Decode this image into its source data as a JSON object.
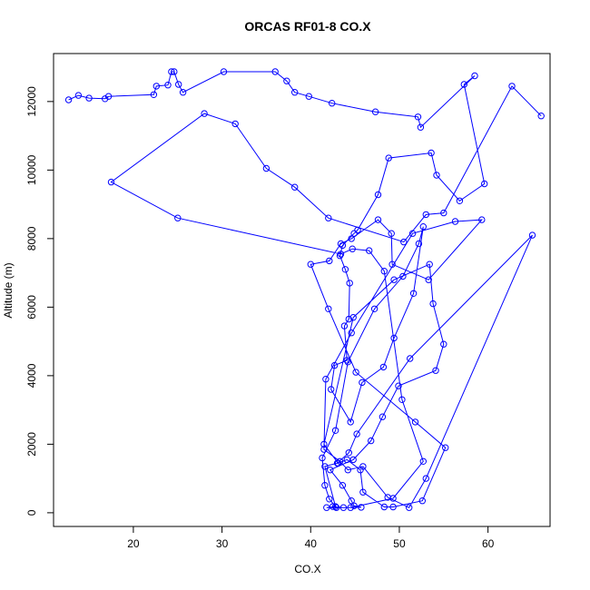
{
  "chart_data": {
    "type": "line",
    "title": "ORCAS RF01-8 CO.X",
    "xlabel": "CO.X",
    "ylabel": "Altitude (m)",
    "xlim": [
      11,
      67
    ],
    "ylim": [
      -400,
      13400
    ],
    "x_ticks": [
      20,
      30,
      40,
      50,
      60
    ],
    "y_ticks": [
      0,
      2000,
      4000,
      6000,
      8000,
      10000,
      12000
    ],
    "grid": false,
    "legend": "none",
    "series": [
      {
        "color": "#0000ff",
        "markers": "open-circle",
        "x": [
          12.7,
          13.8,
          15.0,
          16.8,
          17.2,
          22.3,
          22.6,
          23.9,
          24.3,
          24.6,
          25.1,
          25.6,
          30.2,
          36.0,
          37.3,
          38.2,
          39.8,
          42.4,
          47.3,
          52.1,
          52.4,
          58.5,
          57.3,
          59.6,
          56.8,
          54.2,
          53.6,
          48.8,
          47.6,
          45.3,
          44.9,
          43.6,
          43.3,
          43.9,
          44.4,
          44.3,
          43.8,
          44.1,
          42.7,
          42.3,
          44.5,
          45.8,
          48.2,
          49.4,
          51.6,
          52.7,
          52.2,
          50.4,
          47.2,
          44.2,
          42.8,
          41.3,
          41.6,
          42.1,
          42.9,
          42.5,
          43.7,
          45.7,
          44.9,
          44.6,
          43.6,
          42.2,
          44.8,
          46.8,
          48.1,
          49.9,
          54.1,
          55.0,
          53.8,
          53.4,
          49.4,
          44.8,
          41.5,
          43.1,
          44.1,
          45.6,
          45.9,
          48.3,
          49.3,
          52.6,
          55.2,
          51.8,
          45.1,
          42.0,
          40.0,
          42.1,
          43.4,
          44.6,
          47.6,
          49.1,
          49.2,
          53.3,
          59.3,
          56.3,
          51.5,
          44.6,
          41.7,
          41.5,
          43.3,
          44.2,
          45.9,
          48.7,
          51.1,
          53.0,
          65.0,
          51.2,
          45.2,
          44.3,
          43.0,
          41.6,
          42.8,
          41.8,
          44.5,
          49.3,
          52.7,
          50.3,
          48.3,
          46.6,
          44.7,
          43.4,
          25.0,
          17.5,
          28.0,
          31.5,
          35.0,
          38.2,
          42.0,
          50.5,
          53.0,
          55.0,
          62.7,
          66.0
        ],
        "y": [
          12050,
          12180,
          12100,
          12080,
          12150,
          12200,
          12450,
          12480,
          12870,
          12870,
          12500,
          12270,
          12870,
          12870,
          12600,
          12270,
          12150,
          11950,
          11700,
          11550,
          11250,
          12750,
          12500,
          9600,
          9100,
          9850,
          10500,
          10350,
          9280,
          8250,
          8150,
          7800,
          7500,
          7100,
          6700,
          5650,
          5450,
          4450,
          4300,
          3600,
          2650,
          3800,
          4250,
          5100,
          6400,
          8350,
          7850,
          6900,
          5950,
          4400,
          2400,
          1600,
          800,
          400,
          150,
          180,
          150,
          160,
          200,
          350,
          800,
          1250,
          1550,
          2100,
          2800,
          3700,
          4150,
          4920,
          6100,
          7250,
          6800,
          5700,
          2000,
          1450,
          1550,
          1250,
          600,
          170,
          170,
          350,
          1900,
          2650,
          4100,
          5950,
          7250,
          7350,
          7850,
          8000,
          8550,
          8150,
          7250,
          6800,
          8550,
          8500,
          8150,
          5250,
          3900,
          1850,
          1500,
          1250,
          1350,
          450,
          150,
          1000,
          8100,
          4500,
          2300,
          1750,
          1450,
          1350,
          180,
          150,
          150,
          420,
          1500,
          3300,
          7050,
          7650,
          7700,
          7550,
          8600,
          9650,
          11650,
          11350,
          10050,
          9500,
          8600,
          7900,
          8700,
          8750,
          12450,
          11580
        ]
      }
    ]
  }
}
